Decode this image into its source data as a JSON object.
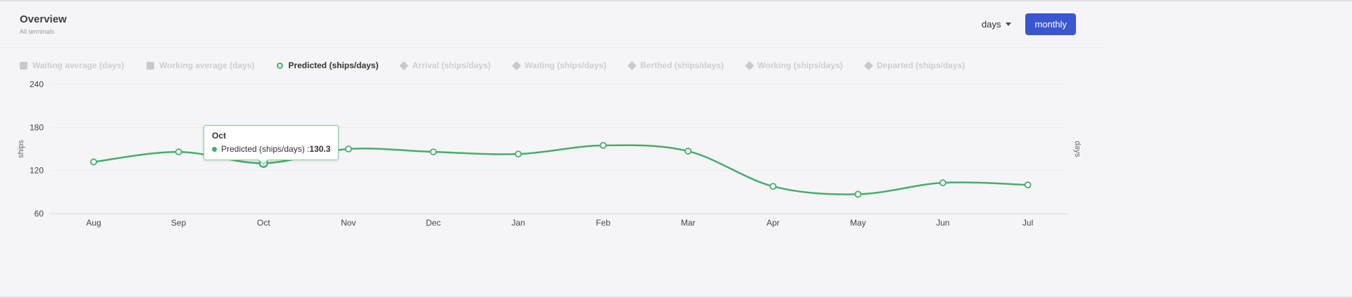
{
  "header": {
    "title": "Overview",
    "subtitle": "All terminals",
    "controls": {
      "interval_select": "days",
      "monthly_button": "monthly"
    }
  },
  "legend": {
    "items": [
      {
        "label": "Waiting average (days)",
        "marker": "square",
        "state": "disabled"
      },
      {
        "label": "Working average (days)",
        "marker": "square",
        "state": "disabled"
      },
      {
        "label": "Predicted (ships/days)",
        "marker": "circle",
        "state": "active"
      },
      {
        "label": "Arrival (ships/days)",
        "marker": "diamond",
        "state": "disabled"
      },
      {
        "label": "Waiting (ships/days)",
        "marker": "diamond",
        "state": "disabled"
      },
      {
        "label": "Berthed (ships/days)",
        "marker": "diamond",
        "state": "disabled"
      },
      {
        "label": "Working (ships/days)",
        "marker": "diamond",
        "state": "disabled"
      },
      {
        "label": "Departed (ships/days)",
        "marker": "diamond",
        "state": "disabled"
      }
    ]
  },
  "chart_data": {
    "type": "line",
    "categories": [
      "Aug",
      "Sep",
      "Oct",
      "Nov",
      "Dec",
      "Jan",
      "Feb",
      "Mar",
      "Apr",
      "May",
      "Jun",
      "Jul"
    ],
    "series": [
      {
        "name": "Predicted (ships/days)",
        "color": "#47ad6c",
        "values": [
          132,
          146,
          130.3,
          150,
          146,
          143,
          155,
          147,
          98,
          87,
          103,
          100
        ]
      }
    ],
    "title": "",
    "xlabel": "",
    "ylabel_left": "ships",
    "ylabel_right": "days",
    "yticks": [
      240,
      180,
      120,
      60
    ],
    "ylim": [
      60,
      240
    ],
    "grid": true,
    "legend_position": "top",
    "highlight_index": 2
  },
  "tooltip": {
    "title": "Oct",
    "label_text": "Predicted (ships/days) : ",
    "value": "130.3"
  }
}
